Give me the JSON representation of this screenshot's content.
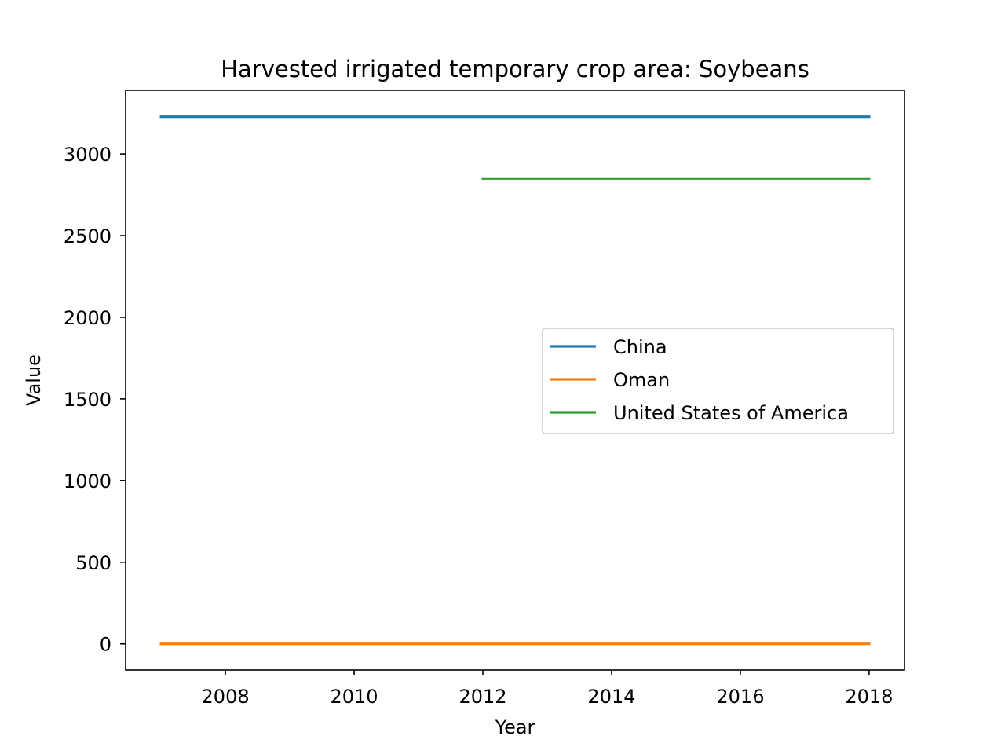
{
  "chart_data": {
    "type": "line",
    "title": "Harvested irrigated temporary crop area: Soybeans",
    "xlabel": "Year",
    "ylabel": "Value",
    "xlim": [
      2006.45,
      2018.55
    ],
    "ylim": [
      -160,
      3390
    ],
    "xticks": [
      2008,
      2010,
      2012,
      2014,
      2016,
      2018
    ],
    "yticks": [
      0,
      500,
      1000,
      1500,
      2000,
      2500,
      3000
    ],
    "grid": false,
    "legend_position": "center-right",
    "series": [
      {
        "name": "China",
        "color": "#1f77b4",
        "x": [
          2007,
          2008,
          2009,
          2010,
          2011,
          2012,
          2013,
          2014,
          2015,
          2016,
          2017,
          2018
        ],
        "y": [
          3228,
          3228,
          3228,
          3228,
          3228,
          3228,
          3228,
          3228,
          3228,
          3228,
          3228,
          3228
        ]
      },
      {
        "name": "Oman",
        "color": "#ff7f0e",
        "x": [
          2007,
          2008,
          2009,
          2010,
          2011,
          2012,
          2013,
          2014,
          2015,
          2016,
          2017,
          2018
        ],
        "y": [
          0,
          0,
          0,
          0,
          0,
          0,
          0,
          0,
          0,
          0,
          0,
          0
        ]
      },
      {
        "name": "United States of America",
        "color": "#2ca02c",
        "x": [
          2012,
          2013,
          2014,
          2015,
          2016,
          2017,
          2018
        ],
        "y": [
          2850,
          2850,
          2850,
          2850,
          2850,
          2850,
          2850
        ]
      }
    ]
  }
}
